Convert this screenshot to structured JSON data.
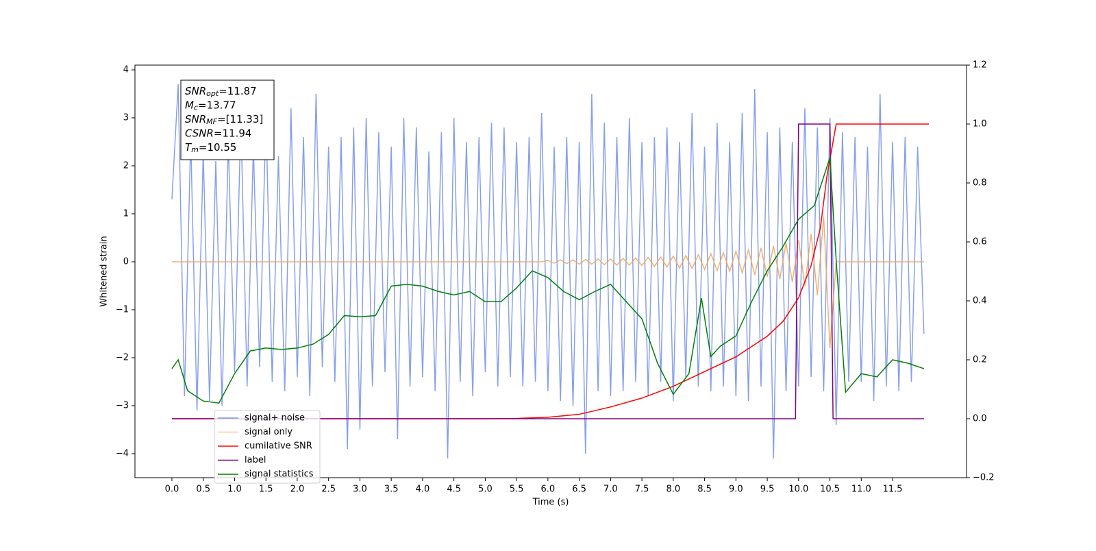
{
  "chart_data": {
    "type": "line",
    "xlabel": "Time (s)",
    "ylabel": "Whitened strain",
    "xlim": [
      -0.59,
      12.68
    ],
    "ylim": [
      -4.5,
      4.1
    ],
    "y2lim": [
      -0.2,
      1.2
    ],
    "xticks": [
      {
        "value": 0,
        "label": "0.0"
      },
      0.5,
      {
        "value": 1,
        "label": "1.0"
      },
      1.5,
      {
        "value": 2,
        "label": "2.0"
      },
      2.5,
      {
        "value": 3,
        "label": "3.0"
      },
      3.5,
      {
        "value": 4,
        "label": "4.0"
      },
      4.5,
      {
        "value": 5,
        "label": "5.0"
      },
      5.5,
      {
        "value": 6,
        "label": "6.0"
      },
      6.5,
      {
        "value": 7,
        "label": "7.0"
      },
      7.5,
      {
        "value": 8,
        "label": "8.0"
      },
      8.5,
      {
        "value": 9,
        "label": "9.0"
      },
      9.5,
      {
        "value": 10,
        "label": "10.0"
      },
      10.5,
      {
        "value": 11,
        "label": "11.0"
      },
      11.5
    ],
    "yticks": [
      {
        "value": -4,
        "label": "−4"
      },
      {
        "value": -3,
        "label": "−3"
      },
      {
        "value": -2,
        "label": "−2"
      },
      {
        "value": -1,
        "label": "−1"
      },
      0,
      1,
      2,
      3,
      4
    ],
    "y2ticks": [
      {
        "value": -0.2,
        "label": "−0.2"
      },
      {
        "value": 0,
        "label": "0.0"
      },
      0.2,
      0.4,
      0.6,
      0.8,
      {
        "value": 1,
        "label": "1.0"
      },
      1.2
    ],
    "annotation": [
      {
        "main": "SNR",
        "sub": "opt",
        "rest": "=11.87"
      },
      {
        "main": "M",
        "sub": "c",
        "rest": "=13.77"
      },
      {
        "main": "SNR",
        "sub": "MF",
        "rest": "=[11.33]"
      },
      {
        "main": "CSNR",
        "sub": null,
        "rest": "=11.94"
      },
      {
        "main": "T",
        "sub": "m",
        "rest": "=10.55"
      }
    ],
    "x": [
      0,
      0.1,
      0.2,
      0.3,
      0.4,
      0.5,
      0.6,
      0.7,
      0.8,
      0.9,
      1,
      1.1,
      1.2,
      1.3,
      1.4,
      1.5,
      1.6,
      1.7,
      1.8,
      1.9,
      2,
      2.1,
      2.2,
      2.3,
      2.4,
      2.5,
      2.6,
      2.7,
      2.8,
      2.9,
      3,
      3.1,
      3.2,
      3.3,
      3.4,
      3.5,
      3.6,
      3.7,
      3.8,
      3.9,
      4,
      4.1,
      4.2,
      4.3,
      4.4,
      4.5,
      4.6,
      4.7,
      4.8,
      4.9,
      5,
      5.1,
      5.2,
      5.3,
      5.4,
      5.5,
      5.6,
      5.7,
      5.8,
      5.9,
      6,
      6.1,
      6.2,
      6.3,
      6.4,
      6.5,
      6.6,
      6.7,
      6.8,
      6.9,
      7,
      7.1,
      7.2,
      7.3,
      7.4,
      7.5,
      7.6,
      7.7,
      7.8,
      7.9,
      8,
      8.1,
      8.2,
      8.3,
      8.4,
      8.5,
      8.6,
      8.7,
      8.8,
      8.9,
      9,
      9.1,
      9.2,
      9.3,
      9.4,
      9.5,
      9.6,
      9.7,
      9.8,
      9.9,
      10,
      10.1,
      10.2,
      10.3,
      10.4,
      10.5,
      10.6,
      10.7,
      10.8,
      10.9,
      11,
      11.1,
      11.2,
      11.3,
      11.4,
      11.5,
      11.6,
      11.7,
      11.8,
      11.9,
      12
    ],
    "series": [
      {
        "name": "signal+ noise",
        "color": "#7b96e8",
        "axis": "y",
        "values": [
          1.3,
          3.7,
          -2.8,
          2.6,
          -3.1,
          2.3,
          -2.9,
          2.1,
          -3.0,
          2.5,
          -2.3,
          3.0,
          -2.6,
          2.4,
          -2.2,
          3.1,
          -2.5,
          2.2,
          -2.7,
          3.2,
          -2.4,
          2.6,
          -2.8,
          3.5,
          -2.2,
          2.4,
          -2.5,
          2.6,
          -3.9,
          2.8,
          -3.5,
          3.0,
          -2.6,
          2.7,
          -2.3,
          2.4,
          -3.7,
          3.0,
          -2.6,
          2.8,
          -2.4,
          2.3,
          -2.7,
          2.7,
          -4.1,
          3.0,
          -2.5,
          2.5,
          -2.8,
          2.6,
          -2.3,
          2.9,
          -2.6,
          2.8,
          -2.4,
          2.5,
          -2.6,
          2.6,
          -2.5,
          3.1,
          -2.7,
          2.4,
          -2.9,
          2.6,
          -3.0,
          2.5,
          -4.0,
          3.5,
          -2.7,
          2.9,
          -2.8,
          2.6,
          -2.7,
          3.0,
          -2.5,
          2.5,
          -2.8,
          2.6,
          -2.5,
          2.8,
          -2.9,
          2.5,
          -2.4,
          3.1,
          -2.6,
          2.4,
          -2.7,
          2.9,
          -2.6,
          2.5,
          -2.8,
          3.1,
          -2.9,
          3.6,
          -2.6,
          2.7,
          -4.1,
          2.8,
          -2.7,
          2.5,
          -2.6,
          3.2,
          -2.4,
          2.8,
          -2.7,
          3.0,
          -3.4,
          2.7,
          -2.5,
          2.6,
          -2.5,
          2.4,
          -2.9,
          3.5,
          -2.6,
          2.5,
          -2.7,
          2.6,
          -2.5,
          2.4,
          -1.5
        ]
      },
      {
        "name": "signal only",
        "color": "#f0a860",
        "axis": "y",
        "values": [
          0,
          0,
          0,
          0,
          0,
          0,
          0,
          0,
          0,
          0,
          0,
          0,
          0,
          0,
          0,
          0,
          0,
          0,
          0,
          0,
          0,
          0,
          0,
          0,
          0,
          0,
          0,
          0,
          0,
          0,
          0,
          0,
          0,
          0,
          0,
          0,
          0,
          0,
          0,
          0,
          0,
          0,
          0,
          0,
          0,
          0,
          0,
          0,
          0,
          0,
          0,
          0,
          0,
          0,
          0,
          0,
          0,
          0,
          0,
          0,
          0.03,
          -0.03,
          0.04,
          -0.04,
          0.04,
          -0.05,
          0.05,
          -0.05,
          0.06,
          -0.06,
          0.06,
          -0.07,
          0.07,
          -0.07,
          0.08,
          -0.08,
          0.09,
          -0.1,
          0.1,
          -0.11,
          0.12,
          -0.13,
          0.13,
          -0.14,
          0.15,
          -0.16,
          0.17,
          -0.18,
          0.19,
          -0.2,
          0.22,
          -0.23,
          0.25,
          -0.27,
          0.29,
          -0.31,
          0.33,
          -0.36,
          0.39,
          -0.42,
          0.46,
          -0.5,
          0.58,
          -0.7,
          0.95,
          -1.8,
          0,
          0,
          0,
          0,
          0,
          0,
          0,
          0,
          0,
          0,
          0,
          0,
          0,
          0,
          0
        ]
      },
      {
        "name": "cumilative SNR",
        "color": "#ff0000",
        "axis": "y2",
        "x": [
          0,
          5.0,
          5.5,
          6.0,
          6.5,
          7.0,
          7.5,
          8.0,
          8.5,
          9.0,
          9.5,
          9.75,
          10.0,
          10.2,
          10.35,
          10.45,
          10.6,
          12.08
        ],
        "values": [
          0,
          0,
          0.001,
          0.005,
          0.015,
          0.04,
          0.07,
          0.11,
          0.16,
          0.21,
          0.28,
          0.33,
          0.41,
          0.52,
          0.65,
          0.82,
          1.0,
          1.0
        ]
      },
      {
        "name": "label",
        "color": "#800080",
        "axis": "y2",
        "x": [
          0,
          9.95,
          10.0,
          10.5,
          10.55,
          12.0
        ],
        "values": [
          0,
          0,
          1,
          1,
          0,
          0
        ]
      },
      {
        "name": "signal statistics",
        "color": "#008000",
        "axis": "y2",
        "x": [
          0,
          0.1,
          0.25,
          0.5,
          0.75,
          1.0,
          1.25,
          1.5,
          1.75,
          2.0,
          2.25,
          2.5,
          2.75,
          3.0,
          3.25,
          3.5,
          3.75,
          4.0,
          4.25,
          4.5,
          4.75,
          5.0,
          5.25,
          5.5,
          5.75,
          6.0,
          6.25,
          6.5,
          6.75,
          7.0,
          7.25,
          7.5,
          7.75,
          8.0,
          8.25,
          8.45,
          8.6,
          8.75,
          9.0,
          9.25,
          9.5,
          9.75,
          10.0,
          10.25,
          10.5,
          10.6,
          10.75,
          11.0,
          11.25,
          11.5,
          11.75,
          12.0
        ],
        "values": [
          0.17,
          0.2,
          0.095,
          0.06,
          0.053,
          0.153,
          0.23,
          0.24,
          0.235,
          0.24,
          0.253,
          0.286,
          0.35,
          0.346,
          0.35,
          0.45,
          0.456,
          0.45,
          0.432,
          0.42,
          0.432,
          0.397,
          0.397,
          0.444,
          0.502,
          0.479,
          0.432,
          0.404,
          0.432,
          0.456,
          0.397,
          0.339,
          0.188,
          0.083,
          0.153,
          0.409,
          0.211,
          0.246,
          0.281,
          0.397,
          0.502,
          0.584,
          0.677,
          0.723,
          0.886,
          0.537,
          0.09,
          0.153,
          0.142,
          0.2,
          0.188,
          0.17
        ]
      }
    ]
  }
}
